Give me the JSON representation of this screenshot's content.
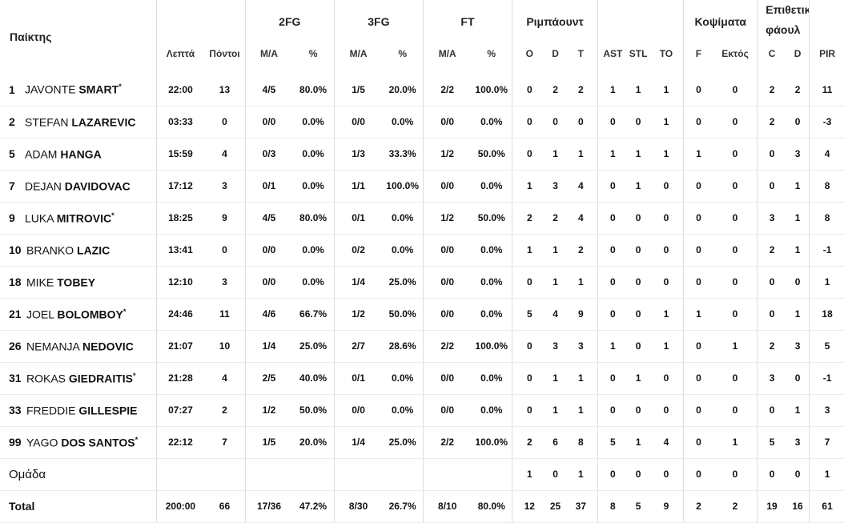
{
  "header": {
    "player": "Παίκτης",
    "minutes": "Λεπτά",
    "points": "Πόντοι",
    "fg2": "2FG",
    "fg3": "3FG",
    "ft": "FT",
    "rebounds": "Ριμπάουντ",
    "blocks": "Κοψίματα",
    "fouls": "Επιθετικά φάουλ",
    "fouls_line1": "Επιθετικά",
    "fouls_line2": "φάουλ",
    "ma": "M/A",
    "pct": "%",
    "o": "O",
    "d": "D",
    "t": "T",
    "ast": "AST",
    "stl": "STL",
    "to": "TO",
    "f": "F",
    "ektos": "Εκτός",
    "c": "C",
    "fd": "D",
    "pir": "PIR"
  },
  "players": [
    {
      "num": "1",
      "first": "JAVONTE",
      "last": "SMART",
      "star": "*",
      "min": "22:00",
      "pts": "13",
      "fg2": "4/5",
      "fg2p": "80.0%",
      "fg3": "1/5",
      "fg3p": "20.0%",
      "ft": "2/2",
      "ftp": "100.0%",
      "o": "0",
      "d": "2",
      "t": "2",
      "ast": "1",
      "stl": "1",
      "to": "1",
      "f": "0",
      "ek": "0",
      "c": "2",
      "fd": "2",
      "pir": "11"
    },
    {
      "num": "2",
      "first": "STEFAN",
      "last": "LAZAREVIC",
      "star": "",
      "min": "03:33",
      "pts": "0",
      "fg2": "0/0",
      "fg2p": "0.0%",
      "fg3": "0/0",
      "fg3p": "0.0%",
      "ft": "0/0",
      "ftp": "0.0%",
      "o": "0",
      "d": "0",
      "t": "0",
      "ast": "0",
      "stl": "0",
      "to": "1",
      "f": "0",
      "ek": "0",
      "c": "2",
      "fd": "0",
      "pir": "-3"
    },
    {
      "num": "5",
      "first": "ADAM",
      "last": "HANGA",
      "star": "",
      "min": "15:59",
      "pts": "4",
      "fg2": "0/3",
      "fg2p": "0.0%",
      "fg3": "1/3",
      "fg3p": "33.3%",
      "ft": "1/2",
      "ftp": "50.0%",
      "o": "0",
      "d": "1",
      "t": "1",
      "ast": "1",
      "stl": "1",
      "to": "1",
      "f": "1",
      "ek": "0",
      "c": "0",
      "fd": "3",
      "pir": "4"
    },
    {
      "num": "7",
      "first": "DEJAN",
      "last": "DAVIDOVAC",
      "star": "",
      "min": "17:12",
      "pts": "3",
      "fg2": "0/1",
      "fg2p": "0.0%",
      "fg3": "1/1",
      "fg3p": "100.0%",
      "ft": "0/0",
      "ftp": "0.0%",
      "o": "1",
      "d": "3",
      "t": "4",
      "ast": "0",
      "stl": "1",
      "to": "0",
      "f": "0",
      "ek": "0",
      "c": "0",
      "fd": "1",
      "pir": "8"
    },
    {
      "num": "9",
      "first": "LUKA",
      "last": "MITROVIC",
      "star": "*",
      "min": "18:25",
      "pts": "9",
      "fg2": "4/5",
      "fg2p": "80.0%",
      "fg3": "0/1",
      "fg3p": "0.0%",
      "ft": "1/2",
      "ftp": "50.0%",
      "o": "2",
      "d": "2",
      "t": "4",
      "ast": "0",
      "stl": "0",
      "to": "0",
      "f": "0",
      "ek": "0",
      "c": "3",
      "fd": "1",
      "pir": "8"
    },
    {
      "num": "10",
      "first": "BRANKO",
      "last": "LAZIC",
      "star": "",
      "min": "13:41",
      "pts": "0",
      "fg2": "0/0",
      "fg2p": "0.0%",
      "fg3": "0/2",
      "fg3p": "0.0%",
      "ft": "0/0",
      "ftp": "0.0%",
      "o": "1",
      "d": "1",
      "t": "2",
      "ast": "0",
      "stl": "0",
      "to": "0",
      "f": "0",
      "ek": "0",
      "c": "2",
      "fd": "1",
      "pir": "-1"
    },
    {
      "num": "18",
      "first": "MIKE",
      "last": "TOBEY",
      "star": "",
      "min": "12:10",
      "pts": "3",
      "fg2": "0/0",
      "fg2p": "0.0%",
      "fg3": "1/4",
      "fg3p": "25.0%",
      "ft": "0/0",
      "ftp": "0.0%",
      "o": "0",
      "d": "1",
      "t": "1",
      "ast": "0",
      "stl": "0",
      "to": "0",
      "f": "0",
      "ek": "0",
      "c": "0",
      "fd": "0",
      "pir": "1"
    },
    {
      "num": "21",
      "first": "JOEL",
      "last": "BOLOMBOY",
      "star": "*",
      "min": "24:46",
      "pts": "11",
      "fg2": "4/6",
      "fg2p": "66.7%",
      "fg3": "1/2",
      "fg3p": "50.0%",
      "ft": "0/0",
      "ftp": "0.0%",
      "o": "5",
      "d": "4",
      "t": "9",
      "ast": "0",
      "stl": "0",
      "to": "1",
      "f": "1",
      "ek": "0",
      "c": "0",
      "fd": "1",
      "pir": "18"
    },
    {
      "num": "26",
      "first": "NEMANJA",
      "last": "NEDOVIC",
      "star": "",
      "min": "21:07",
      "pts": "10",
      "fg2": "1/4",
      "fg2p": "25.0%",
      "fg3": "2/7",
      "fg3p": "28.6%",
      "ft": "2/2",
      "ftp": "100.0%",
      "o": "0",
      "d": "3",
      "t": "3",
      "ast": "1",
      "stl": "0",
      "to": "1",
      "f": "0",
      "ek": "1",
      "c": "2",
      "fd": "3",
      "pir": "5"
    },
    {
      "num": "31",
      "first": "ROKAS",
      "last": "GIEDRAITIS",
      "star": "*",
      "min": "21:28",
      "pts": "4",
      "fg2": "2/5",
      "fg2p": "40.0%",
      "fg3": "0/1",
      "fg3p": "0.0%",
      "ft": "0/0",
      "ftp": "0.0%",
      "o": "0",
      "d": "1",
      "t": "1",
      "ast": "0",
      "stl": "1",
      "to": "0",
      "f": "0",
      "ek": "0",
      "c": "3",
      "fd": "0",
      "pir": "-1"
    },
    {
      "num": "33",
      "first": "FREDDIE",
      "last": "GILLESPIE",
      "star": "",
      "min": "07:27",
      "pts": "2",
      "fg2": "1/2",
      "fg2p": "50.0%",
      "fg3": "0/0",
      "fg3p": "0.0%",
      "ft": "0/0",
      "ftp": "0.0%",
      "o": "0",
      "d": "1",
      "t": "1",
      "ast": "0",
      "stl": "0",
      "to": "0",
      "f": "0",
      "ek": "0",
      "c": "0",
      "fd": "1",
      "pir": "3"
    },
    {
      "num": "99",
      "first": "YAGO",
      "last": "DOS SANTOS",
      "star": "*",
      "min": "22:12",
      "pts": "7",
      "fg2": "1/5",
      "fg2p": "20.0%",
      "fg3": "1/4",
      "fg3p": "25.0%",
      "ft": "2/2",
      "ftp": "100.0%",
      "o": "2",
      "d": "6",
      "t": "8",
      "ast": "5",
      "stl": "1",
      "to": "4",
      "f": "0",
      "ek": "1",
      "c": "5",
      "fd": "3",
      "pir": "7"
    }
  ],
  "team": {
    "label": "Ομάδα",
    "o": "1",
    "d": "0",
    "t": "1",
    "ast": "0",
    "stl": "0",
    "to": "0",
    "f": "0",
    "ek": "0",
    "c": "0",
    "fd": "0",
    "pir": "1"
  },
  "total": {
    "label": "Total",
    "min": "200:00",
    "pts": "66",
    "fg2": "17/36",
    "fg2p": "47.2%",
    "fg3": "8/30",
    "fg3p": "26.7%",
    "ft": "8/10",
    "ftp": "80.0%",
    "o": "12",
    "d": "25",
    "t": "37",
    "ast": "8",
    "stl": "5",
    "to": "9",
    "f": "2",
    "ek": "2",
    "c": "19",
    "fd": "16",
    "pir": "61"
  }
}
